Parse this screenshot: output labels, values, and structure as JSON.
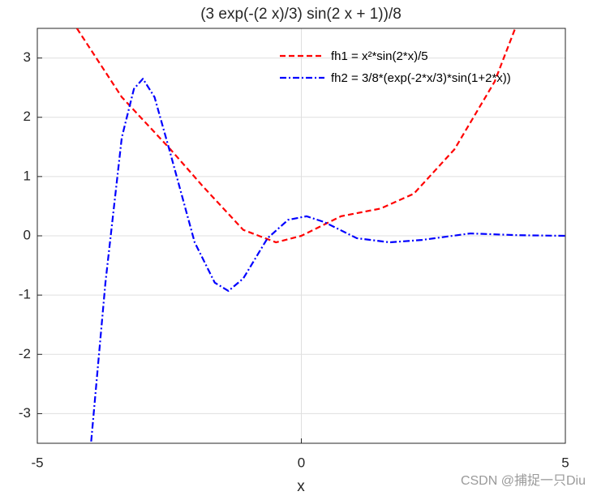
{
  "chart_data": {
    "type": "line",
    "title": "(3 exp(-(2 x)/3) sin(2 x + 1))/8",
    "xlabel": "x",
    "xlim": [
      -5,
      5
    ],
    "xticks": [
      -5,
      0,
      5
    ],
    "ylim": [
      -3.5,
      3.5
    ],
    "yticks": [
      -3,
      -2,
      -1,
      0,
      1,
      2,
      3
    ],
    "grid": true,
    "legend": "upper right",
    "series": [
      {
        "name": "fh1 = x²*sin(2*x)/5",
        "color": "#ff0000",
        "dash": "dashed",
        "x": [
          -4.25,
          -3.4,
          -2.48,
          -1.87,
          -1.1,
          -0.48,
          0,
          0.75,
          1.5,
          2.13,
          2.9,
          3.66,
          4.05
        ],
        "values": [
          3.5,
          2.34,
          1.46,
          0.84,
          0.1,
          -0.11,
          0,
          0.33,
          0.46,
          0.71,
          1.46,
          2.6,
          3.5
        ]
      },
      {
        "name": "fh2 = 3/8*(exp(-2*x/3)*sin(1+2*x))",
        "color": "#0000ff",
        "dash": "dashdot",
        "x": [
          -3.98,
          -3.71,
          -3.4,
          -3.17,
          -3.0,
          -2.78,
          -2.48,
          -2.02,
          -1.64,
          -1.38,
          -1.1,
          -0.64,
          -0.25,
          0.1,
          0.44,
          1.05,
          1.67,
          2.28,
          3.2,
          4.12,
          5
        ],
        "values": [
          -3.47,
          -0.79,
          1.66,
          2.48,
          2.65,
          2.34,
          1.39,
          -0.11,
          -0.79,
          -0.93,
          -0.72,
          -0.04,
          0.27,
          0.33,
          0.23,
          -0.04,
          -0.11,
          -0.07,
          0.04,
          0.01,
          0
        ]
      }
    ],
    "watermark": "CSDN @捕捉一只Diu"
  }
}
